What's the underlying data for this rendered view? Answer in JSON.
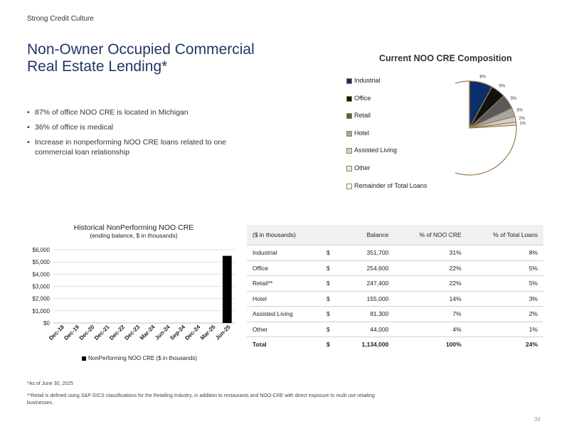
{
  "section_label": "Strong Credit Culture",
  "title_line1": "Non-Owner Occupied Commercial",
  "title_line2": "Real Estate Lending*",
  "bullets": [
    "87% of office NOO CRE is located in Michigan",
    "36% of office is medical",
    "Increase in nonperforming NOO CRE loans related to one commercial loan relationship"
  ],
  "chart_data": [
    {
      "type": "pie",
      "title": "Current NOO CRE Composition",
      "legend_position": "left",
      "slices": [
        {
          "label": "Industrial",
          "value": 8,
          "display": "8%",
          "color": "#0b2f6b"
        },
        {
          "label": "Office",
          "value": 5,
          "display": "5%",
          "color": "#111111"
        },
        {
          "label": "Retail",
          "value": 5,
          "display": "5%",
          "color": "#595959"
        },
        {
          "label": "Hotel",
          "value": 3,
          "display": "3%",
          "color": "#a6a6a6"
        },
        {
          "label": "Assisted Living",
          "value": 2,
          "display": "2%",
          "color": "#d0d0d0"
        },
        {
          "label": "Other",
          "value": 1,
          "display": "1%",
          "color": "#e8e8e8"
        },
        {
          "label": "Remainder of Total Loans",
          "value": 76,
          "display": "",
          "color": "#ffffff"
        }
      ],
      "slice_border_color": "#9a7d4e"
    },
    {
      "type": "bar",
      "title": "Historical NonPerforming NOO CRE",
      "subtitle": "(ending balance, $ in thousands)",
      "categories": [
        "Dec-18",
        "Dec-19",
        "Dec-20",
        "Dec-21",
        "Dec-22",
        "Dec-23",
        "Mar-24",
        "Jun-24",
        "Sep-24",
        "Dec-24",
        "Mar-25",
        "Jun-25"
      ],
      "series": [
        {
          "name": "NonPerforming NOO CRE ($ in thousands)",
          "values": [
            0,
            0,
            0,
            0,
            0,
            0,
            0,
            0,
            0,
            0,
            0,
            5500
          ],
          "color": "#000000"
        }
      ],
      "ylim": [
        0,
        6000
      ],
      "yticks": [
        "$0",
        "$1,000",
        "$2,000",
        "$3,000",
        "$4,000",
        "$5,000",
        "$6,000"
      ],
      "grid": true
    }
  ],
  "table": {
    "headers": [
      "($ in thousands)",
      "Balance",
      "% of NOO CRE",
      "% of Total Loans"
    ],
    "rows": [
      {
        "name": "Industrial",
        "dollar": "$",
        "balance": "351,700",
        "pct_noo": "31%",
        "pct_total": "8%"
      },
      {
        "name": "Office",
        "dollar": "$",
        "balance": "254,600",
        "pct_noo": "22%",
        "pct_total": "5%"
      },
      {
        "name": "Retail**",
        "dollar": "$",
        "balance": "247,400",
        "pct_noo": "22%",
        "pct_total": "5%"
      },
      {
        "name": "Hotel",
        "dollar": "$",
        "balance": "155,000",
        "pct_noo": "14%",
        "pct_total": "3%"
      },
      {
        "name": "Assisted Living",
        "dollar": "$",
        "balance": "81,300",
        "pct_noo": "7%",
        "pct_total": "2%"
      },
      {
        "name": "Other",
        "dollar": "$",
        "balance": "44,000",
        "pct_noo": "4%",
        "pct_total": "1%"
      }
    ],
    "total": {
      "name": "Total",
      "dollar": "$",
      "balance": "1,134,000",
      "pct_noo": "100%",
      "pct_total": "24%"
    }
  },
  "footnote1": "*As of June 30, 2025",
  "footnote2": "**Retail is defined using S&P GICS classifications for the Retailing Industry, in addition to restaurants and NOO-CRE with direct exposure to multi use retailing businesses.",
  "page_number": "34"
}
